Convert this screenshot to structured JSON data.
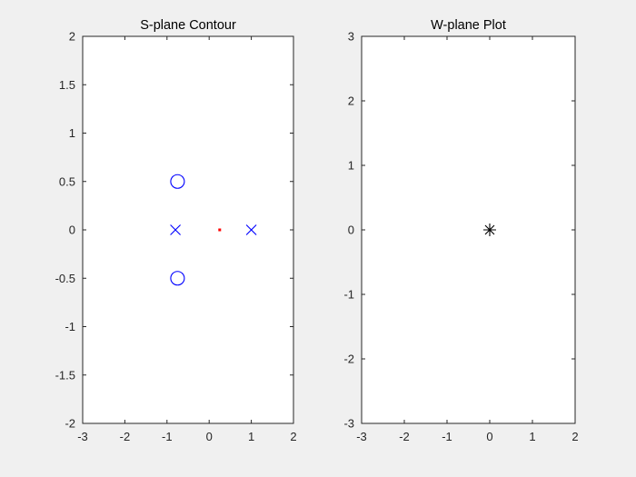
{
  "colors": {
    "figure_bg": "#f0f0f0",
    "axes_bg": "#ffffff",
    "axis": "#262626",
    "pole_zero": "#0000ff",
    "point_red": "#ff0000",
    "marker_black": "#000000"
  },
  "chart_data": [
    {
      "type": "scatter",
      "title": "S-plane Contour",
      "xlabel": "",
      "ylabel": "",
      "xlim": [
        -3,
        2
      ],
      "ylim": [
        -2,
        2
      ],
      "xticks": [
        "-3",
        "-2",
        "-1",
        "0",
        "1",
        "2"
      ],
      "yticks": [
        "-2",
        "-1.5",
        "-1",
        "-0.5",
        "0",
        "0.5",
        "1",
        "1.5",
        "2"
      ],
      "grid": false,
      "series": [
        {
          "marker": "circle",
          "color": "#0000ff",
          "points": [
            [
              -0.75,
              0.5
            ],
            [
              -0.75,
              -0.5
            ]
          ]
        },
        {
          "marker": "x",
          "color": "#0000ff",
          "points": [
            [
              -0.8,
              0
            ],
            [
              1,
              0
            ]
          ]
        },
        {
          "marker": "dot",
          "color": "#ff0000",
          "points": [
            [
              0.25,
              0
            ]
          ]
        }
      ]
    },
    {
      "type": "scatter",
      "title": "W-plane Plot",
      "xlabel": "",
      "ylabel": "",
      "xlim": [
        -3,
        2
      ],
      "ylim": [
        -3,
        3
      ],
      "xticks": [
        "-3",
        "-2",
        "-1",
        "0",
        "1",
        "2"
      ],
      "yticks": [
        "-3",
        "-2",
        "-1",
        "0",
        "1",
        "2",
        "3"
      ],
      "grid": false,
      "series": [
        {
          "marker": "asterisk",
          "color": "#000000",
          "points": [
            [
              0,
              0
            ]
          ]
        }
      ]
    }
  ]
}
